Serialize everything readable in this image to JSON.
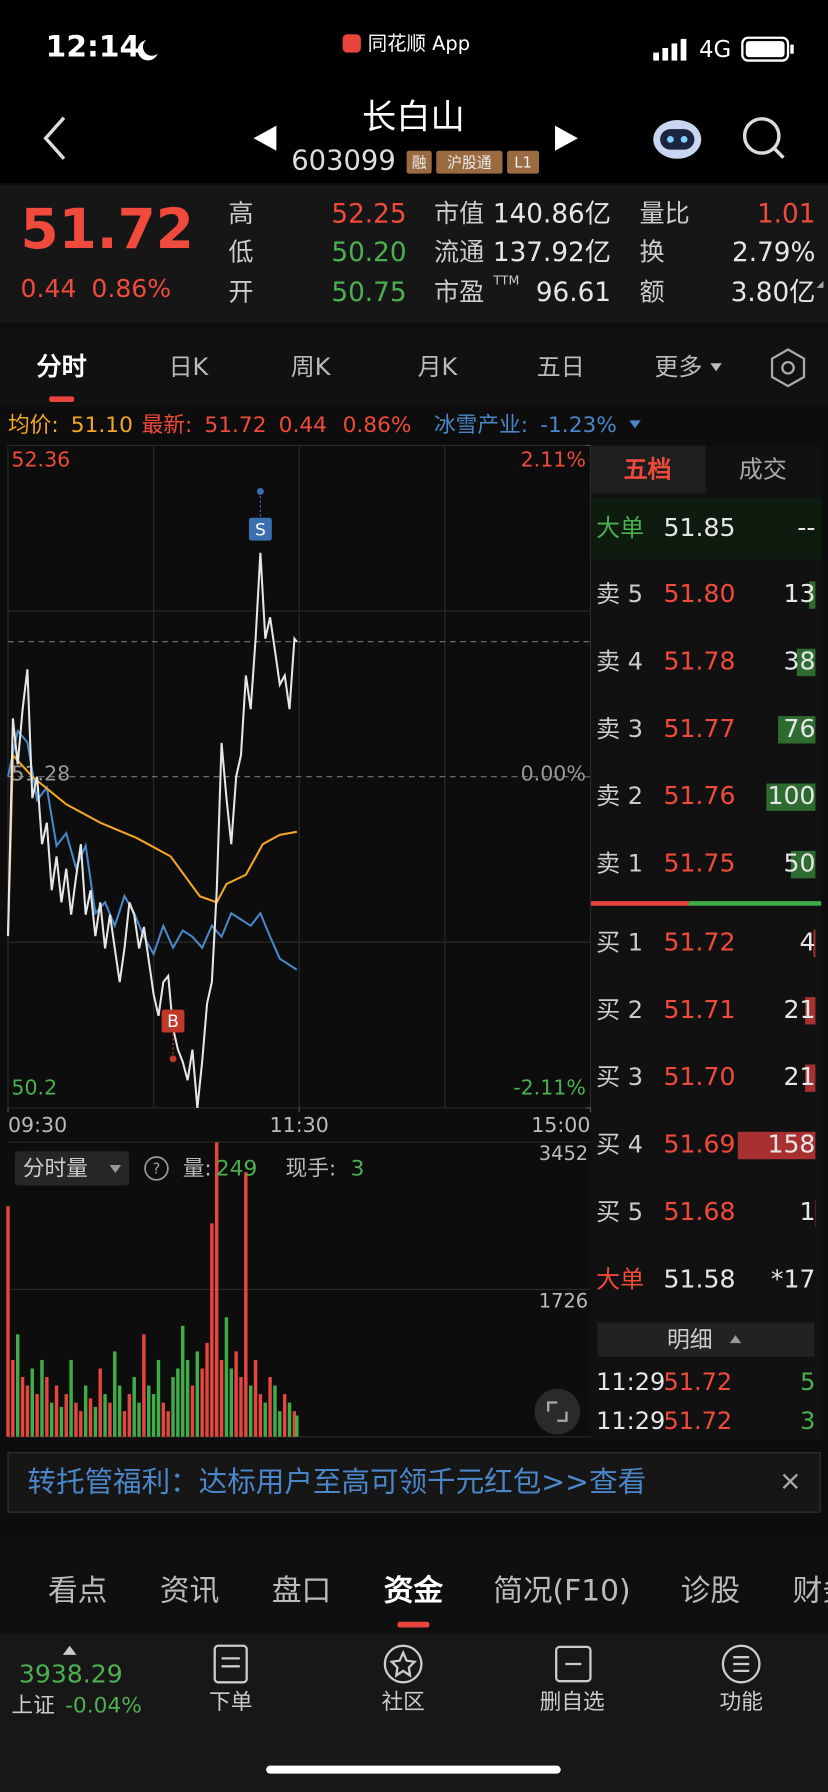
{
  "status_bar": {
    "time": "12:14",
    "app": "同花顺 App",
    "network": "4G"
  },
  "header": {
    "name": "长白山",
    "code": "603099",
    "badges": [
      "融",
      "沪股通",
      "L1"
    ]
  },
  "quote": {
    "price": "51.72",
    "change": "0.44",
    "change_pct": "0.86%",
    "stats": [
      {
        "label": "高",
        "value": "52.25",
        "color": "#f04a3c"
      },
      {
        "label": "低",
        "value": "50.20",
        "color": "#4caf50"
      },
      {
        "label": "开",
        "value": "50.75",
        "color": "#4caf50"
      },
      {
        "label": "市值",
        "value": "140.86亿"
      },
      {
        "label": "流通",
        "value": "137.92亿"
      },
      {
        "label": "市盈",
        "sup": "TTM",
        "value": "96.61"
      },
      {
        "label": "量比",
        "value": "1.01",
        "color": "#f04a3c"
      },
      {
        "label": "换",
        "value": "2.79%"
      },
      {
        "label": "额",
        "value": "3.80亿"
      }
    ]
  },
  "tabs": [
    "分时",
    "日K",
    "周K",
    "月K",
    "五日",
    "更多"
  ],
  "info_line": {
    "avg": "51.10",
    "last": "51.72",
    "change": "0.44",
    "change_pct": "0.86%",
    "sector_pct": "-1.23%"
  },
  "chart_data": [
    {
      "type": "line",
      "xlim": [
        "09:30",
        "15:00"
      ],
      "xticks": [
        "09:30",
        "11:30",
        "15:00"
      ],
      "ylim": [
        50.2,
        52.36
      ],
      "yticks": [
        52.36,
        51.28,
        50.2
      ],
      "y2lim": [
        -2.11,
        2.11
      ],
      "y2ticks": [
        {
          "value": 2.11,
          "label": "2.11%"
        },
        {
          "value": 0,
          "label": "0.00%"
        },
        {
          "value": -2.11,
          "label": "-2.11%"
        }
      ],
      "grid": true,
      "series": [
        {
          "name": "最新:",
          "color": "#e6e6e6",
          "x": [
            "09:30",
            "09:32",
            "09:34",
            "09:36",
            "09:38",
            "09:40",
            "09:42",
            "09:44",
            "09:46",
            "09:48",
            "09:50",
            "09:52",
            "09:54",
            "09:56",
            "09:58",
            "10:00",
            "10:02",
            "10:04",
            "10:06",
            "10:08",
            "10:10",
            "10:12",
            "10:14",
            "10:16",
            "10:18",
            "10:20",
            "10:22",
            "10:24",
            "10:26",
            "10:28",
            "10:30",
            "10:32",
            "10:34",
            "10:36",
            "10:38",
            "10:40",
            "10:42",
            "10:44",
            "10:46",
            "10:48",
            "10:50",
            "10:52",
            "10:54",
            "10:56",
            "10:58",
            "11:00",
            "11:02",
            "11:04",
            "11:06",
            "11:08",
            "11:10",
            "11:12",
            "11:14",
            "11:16",
            "11:18",
            "11:20",
            "11:22",
            "11:24",
            "11:26",
            "11:28",
            "11:29"
          ],
          "values": [
            50.76,
            51.47,
            51.32,
            51.5,
            51.63,
            51.21,
            51.28,
            51.06,
            51.13,
            50.91,
            51.02,
            50.87,
            50.98,
            50.83,
            50.95,
            51.06,
            50.83,
            50.91,
            50.76,
            50.87,
            50.72,
            50.83,
            50.72,
            50.61,
            50.72,
            50.87,
            50.83,
            50.72,
            50.79,
            50.68,
            50.57,
            50.5,
            50.61,
            50.63,
            50.46,
            50.39,
            50.35,
            50.29,
            50.39,
            50.2,
            50.35,
            50.54,
            50.61,
            50.91,
            51.39,
            51.21,
            51.06,
            51.28,
            51.35,
            51.61,
            51.5,
            51.73,
            52.01,
            51.73,
            51.8,
            51.69,
            51.58,
            51.61,
            51.5,
            51.73,
            51.72
          ]
        },
        {
          "name": "均价:",
          "color": "#f5a623",
          "x": [
            "09:30",
            "09:32",
            "09:40",
            "09:54",
            "10:08",
            "10:23",
            "10:37",
            "10:49",
            "10:56",
            "11:00",
            "11:08",
            "11:15",
            "11:22",
            "11:29"
          ],
          "values": [
            50.76,
            51.35,
            51.28,
            51.19,
            51.13,
            51.08,
            51.02,
            50.89,
            50.87,
            50.93,
            50.96,
            51.06,
            51.09,
            51.1
          ]
        },
        {
          "name": "冰雪产业:",
          "color": "#4a86c8",
          "axis": "y2",
          "x": [
            "09:30",
            "09:34",
            "09:38",
            "09:42",
            "09:46",
            "09:50",
            "09:54",
            "09:58",
            "10:02",
            "10:06",
            "10:10",
            "10:14",
            "10:18",
            "10:22",
            "10:26",
            "10:30",
            "10:34",
            "10:38",
            "10:42",
            "10:46",
            "10:50",
            "10:54",
            "10:58",
            "11:02",
            "11:06",
            "11:10",
            "11:14",
            "11:18",
            "11:22",
            "11:26",
            "11:29"
          ],
          "values": [
            0,
            0.29,
            0.22,
            -0.15,
            -0.07,
            -0.44,
            -0.36,
            -0.58,
            -0.44,
            -0.87,
            -0.8,
            -0.95,
            -0.76,
            -0.87,
            -1.02,
            -1.13,
            -0.95,
            -1.09,
            -0.98,
            -1.02,
            -1.09,
            -0.95,
            -1.02,
            -0.87,
            -0.91,
            -0.95,
            -0.87,
            -1.02,
            -1.16,
            -1.2,
            -1.23
          ]
        }
      ],
      "markers": [
        {
          "label": "B",
          "x": "10:38",
          "value": 50.36,
          "color": "#c0392b"
        },
        {
          "label": "S",
          "x": "11:14",
          "value": 52.21,
          "color": "#3a6fb0"
        }
      ]
    },
    {
      "type": "bar",
      "xlim": [
        "09:30",
        "15:00"
      ],
      "ylim": [
        0,
        3452
      ],
      "yticks": [
        1726,
        3452
      ],
      "grid": true,
      "colors": {
        "up": "#e8453c",
        "down": "#3fae49"
      },
      "x": [
        "09:30",
        "09:32",
        "09:34",
        "09:36",
        "09:38",
        "09:40",
        "09:42",
        "09:44",
        "09:46",
        "09:48",
        "09:50",
        "09:52",
        "09:54",
        "09:56",
        "09:58",
        "10:00",
        "10:02",
        "10:04",
        "10:06",
        "10:08",
        "10:10",
        "10:12",
        "10:14",
        "10:16",
        "10:18",
        "10:20",
        "10:22",
        "10:24",
        "10:26",
        "10:28",
        "10:30",
        "10:32",
        "10:34",
        "10:36",
        "10:38",
        "10:40",
        "10:42",
        "10:44",
        "10:46",
        "10:48",
        "10:50",
        "10:52",
        "10:54",
        "10:56",
        "10:58",
        "11:00",
        "11:02",
        "11:04",
        "11:06",
        "11:08",
        "11:10",
        "11:12",
        "11:14",
        "11:16",
        "11:18",
        "11:20",
        "11:22",
        "11:24",
        "11:26",
        "11:28",
        "11:29"
      ],
      "values": [
        2700,
        900,
        1200,
        700,
        600,
        800,
        500,
        900,
        700,
        400,
        600,
        350,
        500,
        900,
        400,
        300,
        600,
        450,
        350,
        800,
        500,
        400,
        1000,
        600,
        300,
        500,
        700,
        400,
        1200,
        600,
        500,
        900,
        400,
        300,
        700,
        800,
        1300,
        900,
        600,
        1000,
        800,
        1100,
        2500,
        3450,
        900,
        1400,
        800,
        1000,
        700,
        3100,
        600,
        900,
        500,
        400,
        700,
        600,
        300,
        500,
        400,
        300,
        249
      ]
    }
  ],
  "volume_header": {
    "selector": "分时量",
    "qty_label": "量:",
    "qty": "249",
    "hand_label": "现手:",
    "hand": "3"
  },
  "order_book": {
    "tabs": [
      "五档",
      "成交"
    ],
    "big_sell": {
      "label": "大单",
      "price": "51.85",
      "qty": "--"
    },
    "asks": [
      {
        "label": "卖 5",
        "price": "51.80",
        "qty": 13
      },
      {
        "label": "卖 4",
        "price": "51.78",
        "qty": 38
      },
      {
        "label": "卖 3",
        "price": "51.77",
        "qty": 76
      },
      {
        "label": "卖 2",
        "price": "51.76",
        "qty": 100
      },
      {
        "label": "卖 1",
        "price": "51.75",
        "qty": 50
      }
    ],
    "bids": [
      {
        "label": "买 1",
        "price": "51.72",
        "qty": 4
      },
      {
        "label": "买 2",
        "price": "51.71",
        "qty": 21
      },
      {
        "label": "买 3",
        "price": "51.70",
        "qty": 21
      },
      {
        "label": "买 4",
        "price": "51.69",
        "qty": 158
      },
      {
        "label": "买 5",
        "price": "51.68",
        "qty": 1
      }
    ],
    "big_buy": {
      "label": "大单",
      "price": "51.58",
      "qty": "*17"
    },
    "detail_title": "明细",
    "ticks": [
      {
        "time": "11:29",
        "price": "51.72",
        "qty": "5"
      },
      {
        "time": "11:29",
        "price": "51.72",
        "qty": "3"
      }
    ]
  },
  "banner": {
    "text": "转托管福利：达标用户至高可领千元红包>>查看"
  },
  "bottom_tabs": [
    "看点",
    "资讯",
    "盘口",
    "资金",
    "简况(F10)",
    "诊股",
    "财务"
  ],
  "footer": {
    "index_value": "3938.29",
    "index_name": "上证",
    "index_change": "-0.04%",
    "actions": [
      "下单",
      "社区",
      "删自选",
      "功能"
    ]
  }
}
